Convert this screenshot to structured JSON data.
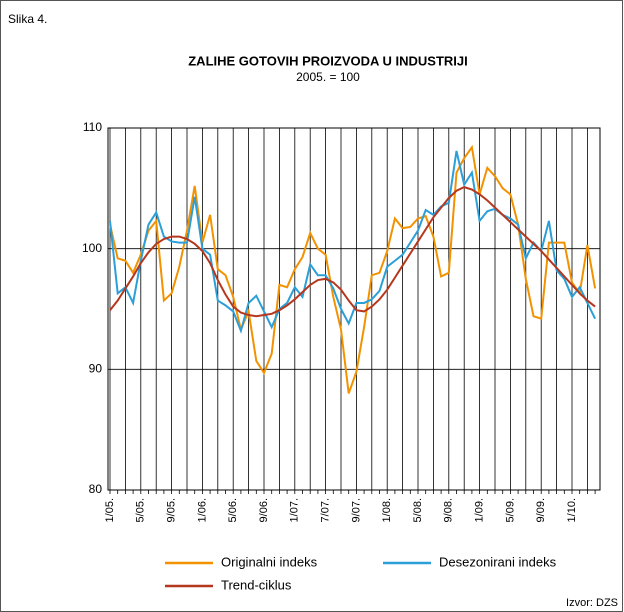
{
  "chart_data": {
    "type": "line",
    "figure_label": "Slika 4.",
    "title": "ZALIHE GOTOVIH PROIZVODA U INDUSTRIJI",
    "subtitle": "2005. = 100",
    "source": "Izvor: DZS",
    "categories": [
      "1/05.",
      null,
      null,
      null,
      "5/05.",
      null,
      null,
      null,
      "9/05.",
      null,
      null,
      null,
      "1/06.",
      null,
      null,
      null,
      "5/06.",
      null,
      null,
      null,
      "9/06.",
      null,
      null,
      null,
      "1/07.",
      null,
      null,
      null,
      "7/07.",
      null,
      null,
      null,
      "9/07.",
      null,
      null,
      null,
      "1/08.",
      null,
      null,
      null,
      "5/08.",
      null,
      null,
      null,
      "9/08.",
      null,
      null,
      null,
      "1/09.",
      null,
      null,
      null,
      "5/09.",
      null,
      null,
      null,
      "9/09.",
      null,
      null,
      null,
      "1/10.",
      null,
      null,
      null
    ],
    "ylim": [
      80,
      110
    ],
    "yticks": [
      80,
      90,
      100,
      110
    ],
    "grid": true,
    "series": [
      {
        "name": "Originalni indeks",
        "color": "#f39200",
        "values": [
          102,
          99.2,
          99,
          98,
          99.5,
          101.5,
          102.3,
          95.7,
          96.3,
          98.5,
          101.5,
          105.2,
          100.5,
          102.8,
          98.3,
          97.8,
          96,
          93.3,
          94.8,
          90.7,
          89.7,
          91.3,
          97,
          96.8,
          98.3,
          99.3,
          101.3,
          100,
          99.5,
          96,
          93.3,
          88,
          89.8,
          93.5,
          97.8,
          98,
          99.8,
          102.5,
          101.7,
          101.8,
          102.5,
          102.7,
          101,
          97.7,
          98,
          106.3,
          107.5,
          108.4,
          104.5,
          106.7,
          106,
          105,
          104.5,
          102,
          97.5,
          94.4,
          94.2,
          100.5,
          100.5,
          100.5,
          97.2,
          96.3,
          100.3,
          96.7
        ]
      },
      {
        "name": "Desezonirani indeks",
        "color": "#2a9fd8",
        "values": [
          102.3,
          96.3,
          96.8,
          95.5,
          99,
          102,
          103,
          101,
          100.6,
          100.5,
          100.5,
          104.3,
          100,
          99.5,
          95.7,
          95.3,
          94.8,
          93.2,
          95.5,
          96.1,
          94.8,
          93.5,
          95,
          95.5,
          96.8,
          96,
          98.7,
          97.8,
          97.8,
          96.7,
          95,
          93.8,
          95.5,
          95.5,
          95.8,
          96.5,
          98.5,
          99,
          99.5,
          100.5,
          101.5,
          103.2,
          102.8,
          103.5,
          103.8,
          108.1,
          105.3,
          106.3,
          102.3,
          103.1,
          103.3,
          102.8,
          102.5,
          102,
          99.2,
          100.5,
          99.8,
          102.3,
          98.2,
          97.5,
          96,
          96.8,
          95.5,
          94.2
        ]
      },
      {
        "name": "Trend-ciklus",
        "color": "#b5381e",
        "values": [
          94.9,
          95.7,
          96.7,
          97.7,
          98.8,
          99.7,
          100.4,
          100.8,
          101,
          101,
          100.8,
          100.4,
          99.8,
          98.8,
          97.4,
          96.2,
          95.2,
          94.7,
          94.5,
          94.4,
          94.5,
          94.6,
          94.9,
          95.3,
          95.8,
          96.4,
          97,
          97.4,
          97.5,
          97.2,
          96.6,
          95.7,
          94.9,
          94.8,
          95.2,
          95.8,
          96.6,
          97.6,
          98.6,
          99.6,
          100.6,
          101.6,
          102.6,
          103.4,
          104.2,
          104.8,
          105.1,
          104.9,
          104.5,
          104,
          103.4,
          102.8,
          102.2,
          101.6,
          101,
          100.4,
          99.8,
          99.1,
          98.4,
          97.7,
          97,
          96.3,
          95.7,
          95.2
        ]
      }
    ]
  }
}
